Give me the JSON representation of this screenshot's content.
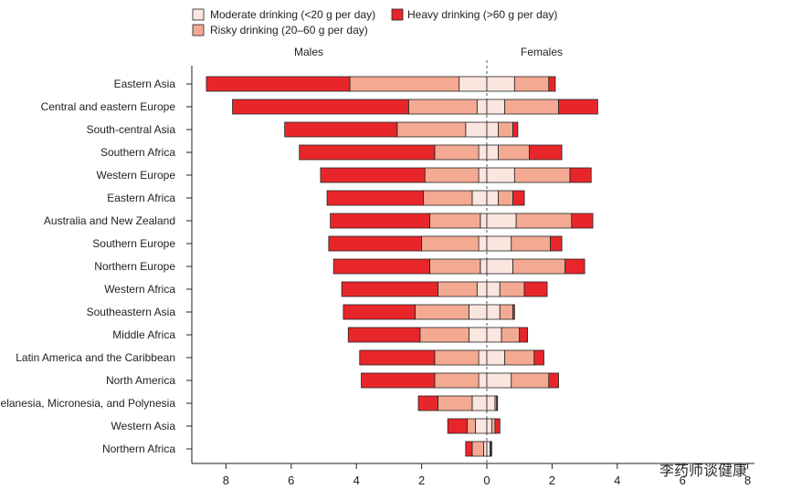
{
  "chart_data": {
    "type": "bar",
    "orientation": "horizontal-diverging",
    "sides": {
      "left": "Males",
      "right": "Females"
    },
    "legend": [
      {
        "key": "moderate",
        "label": "Moderate drinking (<20 g per day)",
        "color": "#fbe5df"
      },
      {
        "key": "heavy",
        "label": "Heavy drinking (>60 g per day)",
        "color": "#e8262a"
      },
      {
        "key": "risky",
        "label": "Risky drinking (20–60 g per day)",
        "color": "#f4a992"
      }
    ],
    "x_ticks": [
      {
        "value": -8,
        "label": "8"
      },
      {
        "value": -6,
        "label": "6"
      },
      {
        "value": -4,
        "label": "4"
      },
      {
        "value": -2,
        "label": "2"
      },
      {
        "value": 0,
        "label": "0"
      },
      {
        "value": 2,
        "label": "2"
      },
      {
        "value": 4,
        "label": "4"
      },
      {
        "value": 6,
        "label": "6"
      },
      {
        "value": 8,
        "label": "8"
      }
    ],
    "xlim": [
      -9,
      8
    ],
    "categories": [
      "Eastern Asia",
      "Central and eastern Europe",
      "South-central Asia",
      "Southern Africa",
      "Western Europe",
      "Eastern Africa",
      "Australia and New Zealand",
      "Southern Europe",
      "Northern Europe",
      "Western Africa",
      "Southeastern Asia",
      "Middle Africa",
      "Latin America and the Caribbean",
      "North America",
      "Melanesia, Micronesia, and Polynesia",
      "Western Asia",
      "Northern Africa"
    ],
    "males": {
      "moderate": [
        0.85,
        0.3,
        0.65,
        0.25,
        0.25,
        0.45,
        0.2,
        0.25,
        0.2,
        0.3,
        0.55,
        0.55,
        0.25,
        0.25,
        0.45,
        0.35,
        0.1
      ],
      "risky": [
        3.35,
        2.1,
        2.1,
        1.35,
        1.65,
        1.5,
        1.55,
        1.75,
        1.55,
        1.2,
        1.65,
        1.5,
        1.35,
        1.35,
        1.05,
        0.25,
        0.35
      ],
      "heavy": [
        4.4,
        5.4,
        3.45,
        4.15,
        3.2,
        2.95,
        3.05,
        2.85,
        2.95,
        2.95,
        2.2,
        2.2,
        2.3,
        2.25,
        0.6,
        0.6,
        0.2
      ]
    },
    "females": {
      "moderate": [
        0.85,
        0.55,
        0.35,
        0.35,
        0.85,
        0.35,
        0.9,
        0.75,
        0.8,
        0.4,
        0.4,
        0.45,
        0.55,
        0.75,
        0.25,
        0.15,
        0.1
      ],
      "risky": [
        1.05,
        1.65,
        0.45,
        0.95,
        1.7,
        0.45,
        1.7,
        1.2,
        1.6,
        0.75,
        0.4,
        0.55,
        0.9,
        1.15,
        0.05,
        0.1,
        0.03
      ],
      "heavy": [
        0.2,
        1.2,
        0.15,
        1.0,
        0.65,
        0.35,
        0.65,
        0.35,
        0.6,
        0.7,
        0.05,
        0.25,
        0.3,
        0.3,
        0.03,
        0.15,
        0.02
      ]
    }
  },
  "watermark": "李药师谈健康"
}
